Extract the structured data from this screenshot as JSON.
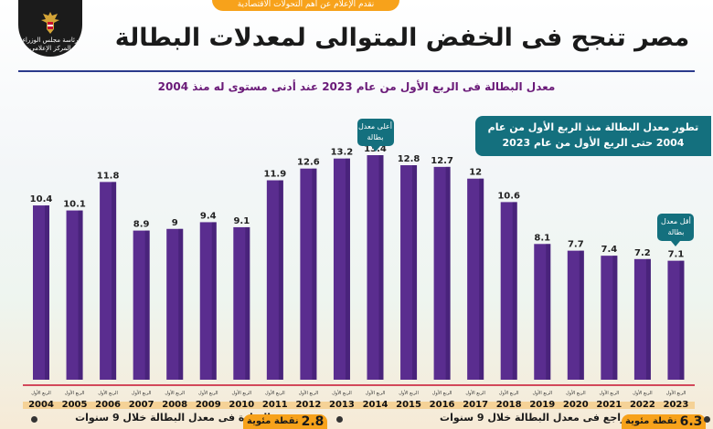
{
  "header": {
    "top_strip": "نقدم الإعلام عن أهم التحولات الاقتصادية",
    "logo_line1": "رئاسة مجلس الوزراء",
    "logo_line2": "المركز الإعلامي",
    "title": "مصر تنجح فى الخفض المتوالى لمعدلات البطالة",
    "subtitle": "معدل البطالة فى الربع الأول من عام 2023 عند أدنى مستوى له منذ 2004"
  },
  "info_box": {
    "line1": "تطور معدل البطالة منذ الربع الأول من عام",
    "line2": "2004 حتى الربع الأول من عام 2023"
  },
  "callouts": {
    "highest": "أعلى معدل بطالة",
    "lowest": "أقل معدل بطالة"
  },
  "chart_data": {
    "type": "bar",
    "categories": [
      "2004",
      "2005",
      "2006",
      "2007",
      "2008",
      "2009",
      "2010",
      "2011",
      "2012",
      "2013",
      "2014",
      "2015",
      "2016",
      "2017",
      "2018",
      "2019",
      "2020",
      "2021",
      "2022",
      "2023"
    ],
    "values": [
      10.4,
      10.1,
      11.8,
      8.9,
      9.0,
      9.4,
      9.1,
      11.9,
      12.6,
      13.2,
      13.4,
      12.8,
      12.7,
      12.0,
      10.6,
      8.1,
      7.7,
      7.4,
      7.2,
      7.1
    ],
    "value_labels": [
      "10.4",
      "10.1",
      "11.8",
      "8.9",
      "9",
      "9.4",
      "9.1",
      "11.9",
      "12.6",
      "13.2",
      "13.4",
      "12.8",
      "12.7",
      "12",
      "10.6",
      "8.1",
      "7.7",
      "7.4",
      "7.2",
      "7.1"
    ],
    "quarter_label": "الربع الأول",
    "ylim": [
      0,
      14
    ],
    "bar_color": "#5a2d8f",
    "grid": false
  },
  "bottom": {
    "left_text": "الزيادة فى معدل البطالة خلال 9 سنوات",
    "left_value": "2.8",
    "left_unit": "نقطة مئوية",
    "right_text": "تراجع فى معدل البطالة خلال 9 سنوات",
    "right_value": "6.3",
    "right_unit": "نقطة مئوية"
  }
}
